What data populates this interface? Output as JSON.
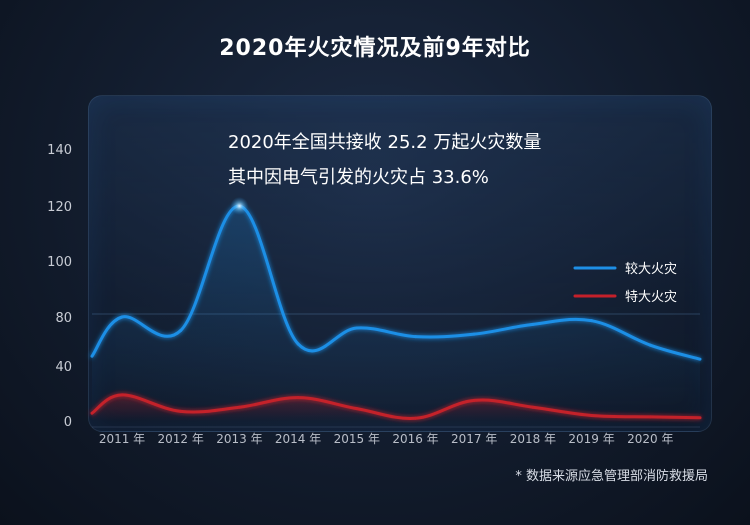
{
  "title": "2020年火灾情况及前9年对比",
  "annotations": [
    "2020年全国共接收 25.2 万起火灾数量",
    "其中因电气引发的火灾占 33.6%"
  ],
  "source": "* 数据来源应急管理部消防救援局",
  "colors": {
    "series1": "#1e8fe6",
    "series2": "#c4202a",
    "background": "#121c2d"
  },
  "chart_data": {
    "type": "line",
    "categories": [
      "2011 年",
      "2012 年",
      "2013 年",
      "2014 年",
      "2015 年",
      "2016 年",
      "2017 年",
      "2018 年",
      "2019 年",
      "2020 年"
    ],
    "yticks": [
      0,
      40,
      80,
      100,
      120,
      140
    ],
    "ylim": [
      0,
      150
    ],
    "grid": false,
    "legend_position": "right",
    "series": [
      {
        "name": "较大火灾",
        "color": "#1e8fe6",
        "values": [
          80,
          69,
          120,
          58,
          71,
          64,
          66,
          74,
          77,
          57
        ]
      },
      {
        "name": "特大火灾",
        "color": "#c4202a",
        "values": [
          19,
          7,
          10,
          17,
          9,
          2,
          15,
          10,
          4,
          3
        ]
      }
    ]
  }
}
